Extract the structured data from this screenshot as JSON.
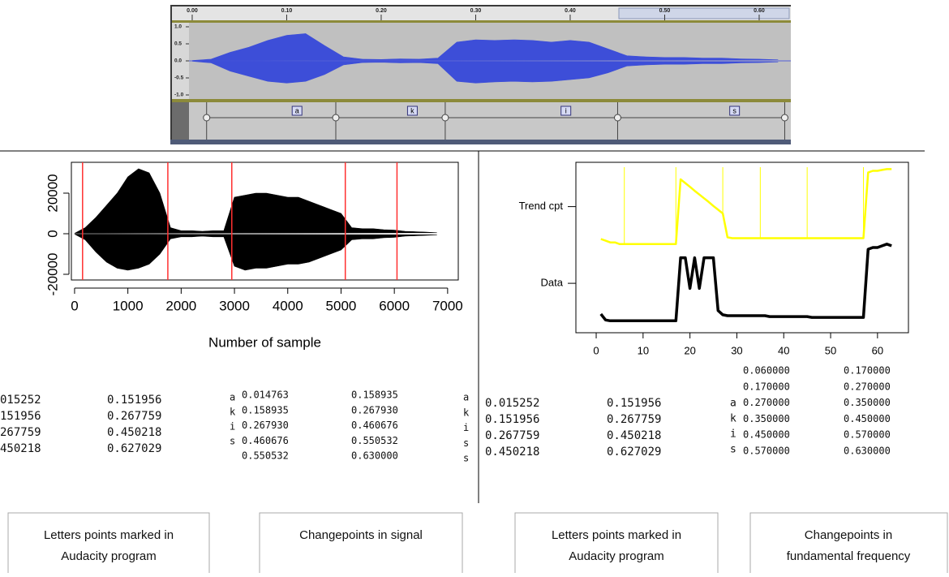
{
  "chart_data": [
    {
      "type": "area",
      "x": [
        0,
        0.02,
        0.04,
        0.06,
        0.08,
        0.1,
        0.12,
        0.14,
        0.16,
        0.18,
        0.2,
        0.22,
        0.24,
        0.26,
        0.28,
        0.3,
        0.32,
        0.34,
        0.36,
        0.38,
        0.4,
        0.42,
        0.44,
        0.46,
        0.48,
        0.5,
        0.52,
        0.54,
        0.56,
        0.58,
        0.6,
        0.62
      ],
      "series": [
        {
          "color": "#3d4ed8",
          "values": [
            0.01,
            0.05,
            0.25,
            0.4,
            0.6,
            0.75,
            0.8,
            0.45,
            0.12,
            0.05,
            0.04,
            0.06,
            0.05,
            0.08,
            0.55,
            0.62,
            0.6,
            0.62,
            0.6,
            0.55,
            0.6,
            0.55,
            0.35,
            0.15,
            0.12,
            0.1,
            0.1,
            0.08,
            0.08,
            0.06,
            0.05,
            0.03
          ]
        },
        {
          "color": "#3d4ed8",
          "values": [
            -0.01,
            -0.06,
            -0.3,
            -0.45,
            -0.6,
            -0.65,
            -0.6,
            -0.4,
            -0.12,
            -0.05,
            -0.04,
            -0.06,
            -0.05,
            -0.08,
            -0.6,
            -0.65,
            -0.62,
            -0.6,
            -0.62,
            -0.6,
            -0.55,
            -0.5,
            -0.35,
            -0.15,
            -0.12,
            -0.1,
            -0.1,
            -0.08,
            -0.08,
            -0.06,
            -0.05,
            -0.03
          ]
        }
      ],
      "xlim": [
        -0.0034,
        0.6335
      ],
      "ylim": [
        -1.119,
        1.119
      ],
      "xticks": [
        {
          "value": 0,
          "label": "0.00"
        },
        {
          "value": 0.1,
          "label": "0.10"
        },
        {
          "value": 0.2,
          "label": "0.20"
        },
        {
          "value": 0.3,
          "label": "0.30"
        },
        {
          "value": 0.4,
          "label": "0.40"
        },
        {
          "value": 0.5,
          "label": "0.50"
        },
        {
          "value": 0.6,
          "label": "0.60"
        }
      ],
      "yticks": [
        {
          "value": 1,
          "label": "1.0"
        },
        0.5,
        {
          "value": 0,
          "label": "0.0"
        },
        -0.5,
        {
          "value": -1,
          "label": "-1.0"
        }
      ],
      "segments": [
        {
          "start": 0.015252,
          "end": 0.151956,
          "text": "a"
        },
        {
          "start": 0.151956,
          "end": 0.267759,
          "text": "k"
        },
        {
          "start": 0.267759,
          "end": 0.450218,
          "text": "i"
        },
        {
          "start": 0.450218,
          "end": 0.627029,
          "text": "s"
        }
      ]
    },
    {
      "type": "area",
      "x": [
        0,
        200,
        400,
        600,
        800,
        1000,
        1200,
        1400,
        1600,
        1800,
        2000,
        2200,
        2400,
        2600,
        2800,
        3000,
        3200,
        3400,
        3600,
        3800,
        4000,
        4200,
        4400,
        4600,
        4800,
        5000,
        5200,
        5400,
        5600,
        5800,
        6000,
        6200,
        6400,
        6600,
        6800
      ],
      "series": [
        {
          "color": "#000000",
          "values": [
            200,
            3000,
            8000,
            14000,
            20000,
            28000,
            32000,
            30000,
            20000,
            3000,
            1500,
            1500,
            1200,
            1500,
            1500,
            18000,
            19000,
            20000,
            20000,
            19000,
            18000,
            18000,
            16000,
            14000,
            12000,
            10000,
            3000,
            2500,
            2500,
            2000,
            1800,
            1200,
            1000,
            800,
            500
          ]
        },
        {
          "color": "#000000",
          "values": [
            -200,
            -3000,
            -9000,
            -14000,
            -17000,
            -18000,
            -17000,
            -15000,
            -10000,
            -2500,
            -1500,
            -1500,
            -1200,
            -1500,
            -1500,
            -16000,
            -18000,
            -17000,
            -17000,
            -16000,
            -15000,
            -15000,
            -14000,
            -12000,
            -10000,
            -8000,
            -3000,
            -2500,
            -2500,
            -2000,
            -1800,
            -1200,
            -1000,
            -800,
            -500
          ]
        }
      ],
      "xlim": [
        -60,
        7200
      ],
      "ylim": [
        -22800,
        35200
      ],
      "xticks": [
        0,
        1000,
        2000,
        3000,
        4000,
        5000,
        6000,
        7000
      ],
      "yticks": [
        -20000,
        0,
        20000
      ],
      "xlabel": "Number of sample",
      "vlines": {
        "color": "#ff3030",
        "values": [
          150,
          1750,
          2950,
          5080,
          6050
        ]
      }
    },
    {
      "type": "line",
      "x": [
        1,
        2,
        3,
        4,
        5,
        6,
        7,
        8,
        9,
        10,
        11,
        12,
        13,
        14,
        15,
        16,
        17,
        18,
        19,
        20,
        21,
        22,
        23,
        24,
        25,
        26,
        27,
        28,
        29,
        30,
        31,
        32,
        33,
        34,
        35,
        36,
        37,
        38,
        39,
        40,
        41,
        42,
        43,
        44,
        45,
        46,
        47,
        48,
        49,
        50,
        51,
        52,
        53,
        54,
        55,
        56,
        57,
        58,
        59,
        60,
        61,
        62,
        63
      ],
      "series": [
        {
          "color": "#ffff00",
          "values": [
            5.5,
            5.4,
            5.3,
            5.3,
            5.2,
            5.2,
            5.2,
            5.2,
            5.2,
            5.2,
            5.2,
            5.2,
            5.2,
            5.2,
            5.2,
            5.2,
            5.2,
            9.0,
            8.78,
            8.56,
            8.33,
            8.11,
            7.89,
            7.67,
            7.44,
            7.22,
            7.0,
            5.6,
            5.55,
            5.55,
            5.55,
            5.55,
            5.55,
            5.55,
            5.55,
            5.55,
            5.55,
            5.55,
            5.55,
            5.55,
            5.55,
            5.55,
            5.55,
            5.55,
            5.55,
            5.55,
            5.55,
            5.55,
            5.55,
            5.55,
            5.55,
            5.55,
            5.55,
            5.55,
            5.55,
            5.55,
            5.55,
            9.4,
            9.5,
            9.5,
            9.55,
            9.6,
            9.6
          ]
        },
        {
          "color": "#000000",
          "values": [
            1.1,
            0.75,
            0.7,
            0.7,
            0.7,
            0.7,
            0.7,
            0.7,
            0.7,
            0.7,
            0.7,
            0.7,
            0.7,
            0.7,
            0.7,
            0.7,
            0.7,
            4.4,
            4.4,
            2.6,
            4.4,
            2.6,
            4.4,
            4.4,
            4.4,
            1.3,
            1.05,
            1.0,
            1.0,
            1.0,
            1.0,
            1.0,
            1.0,
            1.0,
            1.0,
            1.0,
            0.95,
            0.95,
            0.95,
            0.95,
            0.95,
            0.95,
            0.95,
            0.95,
            0.95,
            0.9,
            0.9,
            0.9,
            0.9,
            0.9,
            0.9,
            0.9,
            0.9,
            0.9,
            0.9,
            0.9,
            0.9,
            4.9,
            5.0,
            5.0,
            5.1,
            5.2,
            5.1
          ]
        }
      ],
      "xlim": [
        -4.33,
        66.6
      ],
      "ylim": [
        0,
        10
      ],
      "xticks": [
        0,
        10,
        20,
        30,
        40,
        50,
        60
      ],
      "yticks": [
        {
          "value": 7.4,
          "label": "Trend cpt"
        },
        {
          "value": 2.9,
          "label": "Data"
        }
      ],
      "vlines": {
        "color": "#ffff00",
        "values": [
          6,
          17,
          27,
          35,
          45,
          57
        ]
      }
    }
  ],
  "text_blocks": [
    {
      "rows": [
        [
          "015252",
          "0.151956"
        ],
        [
          "151956",
          "0.267759"
        ],
        [
          "267759",
          "0.450218"
        ],
        [
          "450218",
          "0.627029"
        ]
      ]
    },
    {
      "rows": [
        [
          "a"
        ],
        [
          "k"
        ],
        [
          "i"
        ],
        [
          "s"
        ]
      ]
    },
    {
      "rows": [
        [
          "0.014763",
          "0.158935"
        ],
        [
          "0.158935",
          "0.267930"
        ],
        [
          "0.267930",
          "0.460676"
        ],
        [
          "0.460676",
          "0.550532"
        ],
        [
          "0.550532",
          "0.630000"
        ]
      ]
    },
    {
      "rows": [
        [
          "a"
        ],
        [
          "k"
        ],
        [
          "i"
        ],
        [
          "s"
        ],
        [
          "s"
        ]
      ]
    },
    {
      "rows": [
        [
          "0.015252",
          "0.151956"
        ],
        [
          "0.151956",
          "0.267759"
        ],
        [
          "0.267759",
          "0.450218"
        ],
        [
          "0.450218",
          "0.627029"
        ]
      ]
    },
    {
      "rows": [
        [
          "a"
        ],
        [
          "k"
        ],
        [
          "i"
        ],
        [
          "s"
        ]
      ]
    },
    {
      "rows": [
        [
          "0.060000",
          "0.170000"
        ],
        [
          "0.170000",
          "0.270000"
        ],
        [
          "0.270000",
          "0.350000"
        ],
        [
          "0.350000",
          "0.450000"
        ],
        [
          "0.450000",
          "0.570000"
        ],
        [
          "0.570000",
          "0.630000"
        ]
      ]
    }
  ],
  "captions": [
    [
      "Letters points marked in",
      "Audacity program"
    ],
    [
      "Changepoints in signal"
    ],
    [
      "Letters points marked in",
      "Audacity program"
    ],
    [
      "Changepoints in",
      "fundamental frequency"
    ]
  ]
}
